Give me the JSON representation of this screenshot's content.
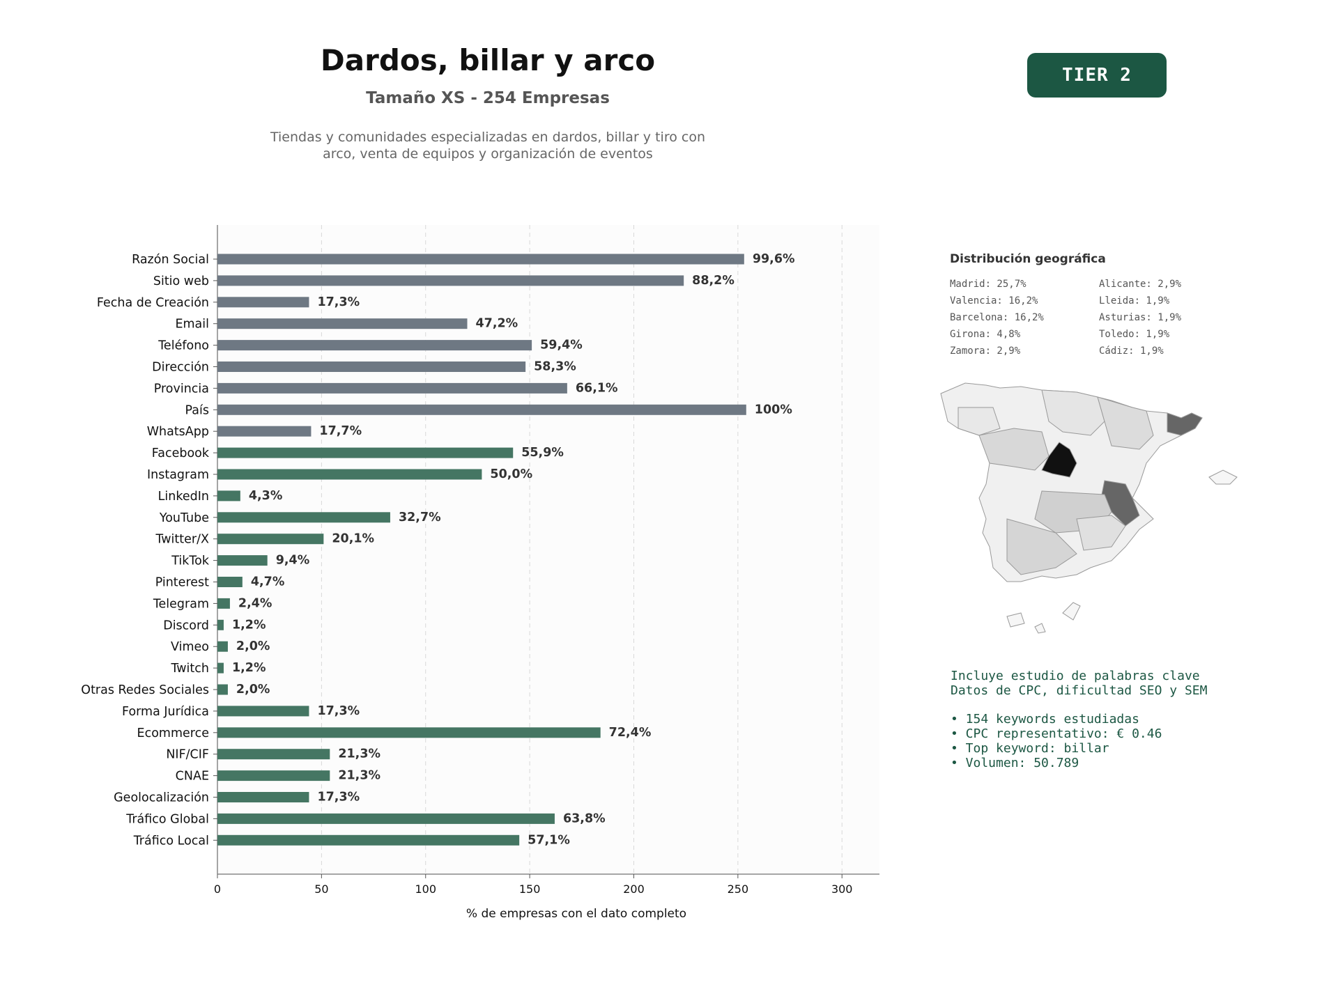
{
  "header": {
    "title": "Dardos, billar y arco",
    "subtitle": "Tamaño XS - 254 Empresas",
    "description_line1": "Tiendas y comunidades especializadas en dardos, billar y tiro con",
    "description_line2": "arco, venta de equipos y organización de eventos",
    "tier": "TIER 2"
  },
  "colors": {
    "gray_bar": "#6e7883",
    "green_bar": "#457663",
    "tier_bg": "#1c5743",
    "info_text": "#1c5743"
  },
  "chart_data": {
    "type": "bar",
    "orientation": "horizontal",
    "xlabel": "% de empresas con el dato completo",
    "xlim": [
      0,
      318
    ],
    "xticks": [
      0,
      50,
      100,
      150,
      200,
      250,
      300
    ],
    "grid": "x-dashed",
    "categories": [
      "Razón Social",
      "Sitio web",
      "Fecha de Creación",
      "Email",
      "Teléfono",
      "Dirección",
      "Provincia",
      "País",
      "WhatsApp",
      "Facebook",
      "Instagram",
      "LinkedIn",
      "YouTube",
      "Twitter/X",
      "TikTok",
      "Pinterest",
      "Telegram",
      "Discord",
      "Vimeo",
      "Twitch",
      "Otras Redes Sociales",
      "Forma Jurídica",
      "Ecommerce",
      "NIF/CIF",
      "CNAE",
      "Geolocalización",
      "Tráfico Global",
      "Tráfico Local"
    ],
    "values": [
      253,
      224,
      44,
      120,
      151,
      148,
      168,
      254,
      45,
      142,
      127,
      11,
      83,
      51,
      24,
      12,
      6,
      3,
      5,
      3,
      5,
      44,
      184,
      54,
      54,
      44,
      162,
      145
    ],
    "labels": [
      "99,6%",
      "88,2%",
      "17,3%",
      "47,2%",
      "59,4%",
      "58,3%",
      "66,1%",
      "100%",
      "17,7%",
      "55,9%",
      "50,0%",
      "4,3%",
      "32,7%",
      "20,1%",
      "9,4%",
      "4,7%",
      "2,4%",
      "1,2%",
      "2,0%",
      "1,2%",
      "2,0%",
      "17,3%",
      "72,4%",
      "21,3%",
      "21,3%",
      "17,3%",
      "63,8%",
      "57,1%"
    ],
    "color_group": [
      "gray",
      "gray",
      "gray",
      "gray",
      "gray",
      "gray",
      "gray",
      "gray",
      "gray",
      "green",
      "green",
      "green",
      "green",
      "green",
      "green",
      "green",
      "green",
      "green",
      "green",
      "green",
      "green",
      "green",
      "green",
      "green",
      "green",
      "green",
      "green",
      "green"
    ]
  },
  "geo": {
    "title": "Distribución geográfica",
    "items": [
      "Madrid: 25,7%",
      "Alicante: 2,9%",
      "Valencia: 16,2%",
      "Lleida: 1,9%",
      "Barcelona: 16,2%",
      "Asturias: 1,9%",
      "Girona: 4,8%",
      "Toledo: 1,9%",
      "Zamora: 2,9%",
      "Cádiz: 1,9%"
    ]
  },
  "info": {
    "line1": "Incluye estudio de palabras clave",
    "line2": "Datos de CPC, dificultad SEO y SEM",
    "bullets": [
      "• 154 keywords estudiadas",
      "• CPC representativo: € 0.46",
      "• Top keyword: billar",
      "• Volumen: 50.789"
    ]
  }
}
